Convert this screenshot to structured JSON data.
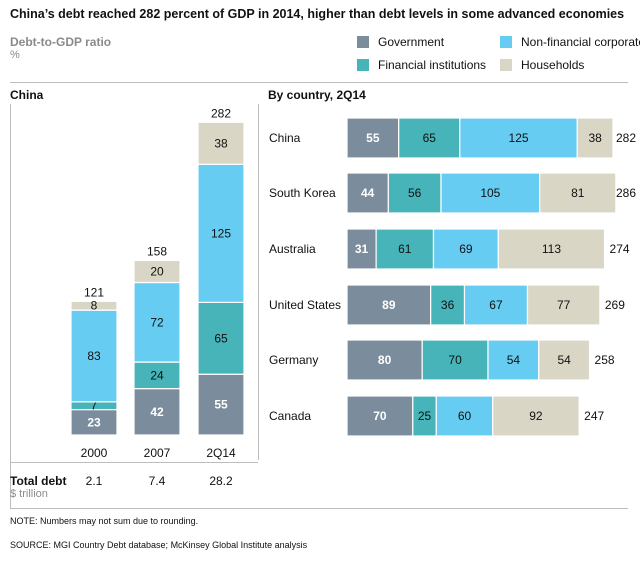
{
  "title": "China’s debt reached 282 percent of GDP in 2014, higher than debt levels in some advanced economies",
  "subtitle": "Debt-to-GDP ratio",
  "unit": "%",
  "legend": [
    {
      "label": "Government",
      "color": "#7b8d9c"
    },
    {
      "label": "Non-financial corporate",
      "color": "#66ccf2"
    },
    {
      "label": "Financial institutions",
      "color": "#46b4b8"
    },
    {
      "label": "Households",
      "color": "#d9d6c6"
    }
  ],
  "colors": {
    "Government": "#7b8d9c",
    "Financial institutions": "#46b4b8",
    "Non-financial corporate": "#66ccf2",
    "Households": "#d9d6c6"
  },
  "chart_data": [
    {
      "type": "bar",
      "title": "China",
      "stacked": true,
      "orientation": "vertical",
      "categories": [
        "2000",
        "2007",
        "2Q14"
      ],
      "series": [
        {
          "name": "Government",
          "values": [
            23,
            42,
            55
          ]
        },
        {
          "name": "Financial institutions",
          "values": [
            7,
            24,
            65
          ]
        },
        {
          "name": "Non-financial corporate",
          "values": [
            83,
            72,
            125
          ]
        },
        {
          "name": "Households",
          "values": [
            8,
            20,
            38
          ]
        }
      ],
      "totals": [
        121,
        158,
        282
      ],
      "total_debt": {
        "label": "Total debt",
        "unit": "$ trillion",
        "values": [
          "2.1",
          "7.4",
          "28.2"
        ]
      }
    },
    {
      "type": "bar",
      "title": "By country, 2Q14",
      "stacked": true,
      "orientation": "horizontal",
      "categories": [
        "China",
        "South Korea",
        "Australia",
        "United States",
        "Germany",
        "Canada"
      ],
      "series": [
        {
          "name": "Government",
          "values": [
            55,
            44,
            31,
            89,
            80,
            70
          ]
        },
        {
          "name": "Financial institutions",
          "values": [
            65,
            56,
            61,
            36,
            70,
            25
          ]
        },
        {
          "name": "Non-financial corporate",
          "values": [
            125,
            105,
            69,
            67,
            54,
            60
          ]
        },
        {
          "name": "Households",
          "values": [
            38,
            81,
            113,
            77,
            54,
            92
          ]
        }
      ],
      "totals": [
        282,
        286,
        274,
        269,
        258,
        247
      ]
    }
  ],
  "note": "NOTE: Numbers may not sum due to rounding.",
  "source": "SOURCE:  MGI Country Debt database; McKinsey Global Institute analysis"
}
